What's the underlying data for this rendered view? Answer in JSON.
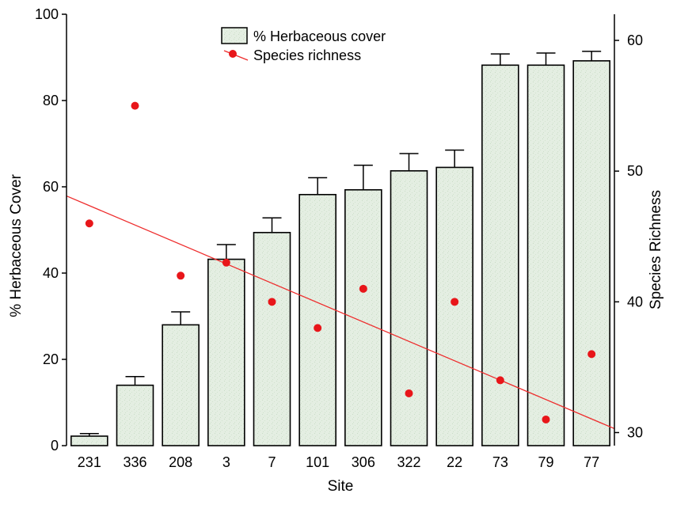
{
  "chart_data": {
    "type": "bar",
    "xlabel": "Site",
    "ylabel_left": "% Herbaceous Cover",
    "ylabel_right": "Species Richness",
    "categories": [
      "231",
      "336",
      "208",
      "3",
      "7",
      "101",
      "306",
      "322",
      "22",
      "73",
      "79",
      "77"
    ],
    "ylim_left": [
      0,
      100
    ],
    "ylim_right": [
      29,
      62
    ],
    "yticks_left": [
      0,
      20,
      40,
      60,
      80,
      100
    ],
    "yticks_right": [
      30,
      40,
      50,
      60
    ],
    "grid": false,
    "legend_position": "top-center",
    "series": [
      {
        "name": "% Herbaceous cover",
        "type": "bar",
        "axis": "left",
        "color": "#e4eee2",
        "values": [
          2.2,
          14,
          28,
          43.2,
          49.4,
          58.2,
          59.3,
          63.7,
          64.5,
          88.2,
          88.2,
          89.2
        ],
        "error_upper": [
          0.6,
          2,
          3,
          3.4,
          3.4,
          3.9,
          5.7,
          4,
          4,
          2.6,
          2.8,
          2.2
        ]
      },
      {
        "name": "Species richness",
        "type": "scatter",
        "axis": "right",
        "color": "#e8161a",
        "values": [
          46,
          55,
          42,
          43,
          40,
          38,
          41,
          33,
          40,
          34,
          31,
          36
        ]
      }
    ],
    "trendline": {
      "color": "#ee2d2d",
      "x_start": 0,
      "x_end": 12,
      "y_start": 48.1,
      "y_end": 30.3
    }
  }
}
